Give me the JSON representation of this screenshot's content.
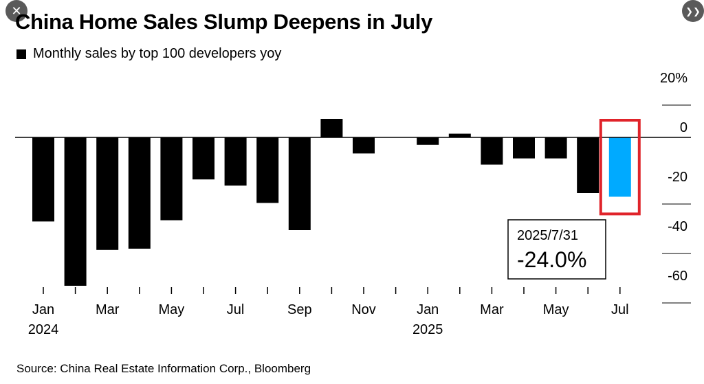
{
  "controls": {
    "close_glyph": "✕",
    "next_glyph": "❯❯"
  },
  "header": {
    "title": "China Home Sales Slump Deepens in July",
    "legend_label": "Monthly sales by top 100 developers yoy"
  },
  "source": "Source: China Real Estate Information Corp., Bloomberg",
  "colors": {
    "bar": "#000000",
    "highlight_bar": "#00aaff",
    "highlight_box": "#e0232a"
  },
  "chart_data": {
    "type": "bar",
    "title": "China Home Sales Slump Deepens in July",
    "ylabel": "Monthly sales by top 100 developers yoy",
    "categories": [
      "2024-01",
      "2024-02",
      "2024-03",
      "2024-04",
      "2024-05",
      "2024-06",
      "2024-07",
      "2024-08",
      "2024-09",
      "2024-10",
      "2024-11",
      "2024-12",
      "2025-01",
      "2025-02",
      "2025-03",
      "2025-04",
      "2025-05",
      "2025-06",
      "2025-07"
    ],
    "values": [
      -34,
      -60,
      -45.5,
      -45,
      -33.5,
      -17,
      -19.5,
      -26.5,
      -37.5,
      7.5,
      -6.5,
      0,
      -3,
      1.5,
      -11,
      -8.5,
      -8.5,
      -22.5,
      -24.0
    ],
    "x_tick_labels": [
      {
        "index": 0,
        "month": "Jan",
        "year": "2024"
      },
      {
        "index": 2,
        "month": "Mar",
        "year": ""
      },
      {
        "index": 4,
        "month": "May",
        "year": ""
      },
      {
        "index": 6,
        "month": "Jul",
        "year": ""
      },
      {
        "index": 8,
        "month": "Sep",
        "year": ""
      },
      {
        "index": 10,
        "month": "Nov",
        "year": ""
      },
      {
        "index": 12,
        "month": "Jan",
        "year": "2025"
      },
      {
        "index": 14,
        "month": "Mar",
        "year": ""
      },
      {
        "index": 16,
        "month": "May",
        "year": ""
      },
      {
        "index": 18,
        "month": "Jul",
        "year": ""
      }
    ],
    "y_ticks": [
      {
        "value": 20,
        "label": "20%"
      },
      {
        "value": 0,
        "label": "0"
      },
      {
        "value": -20,
        "label": "-20"
      },
      {
        "value": -40,
        "label": "-40"
      },
      {
        "value": -60,
        "label": "-60"
      }
    ],
    "ylim": [
      -60,
      20
    ],
    "highlight_index": 18,
    "annotation": {
      "date": "2025/7/31",
      "value": "-24.0%"
    }
  }
}
